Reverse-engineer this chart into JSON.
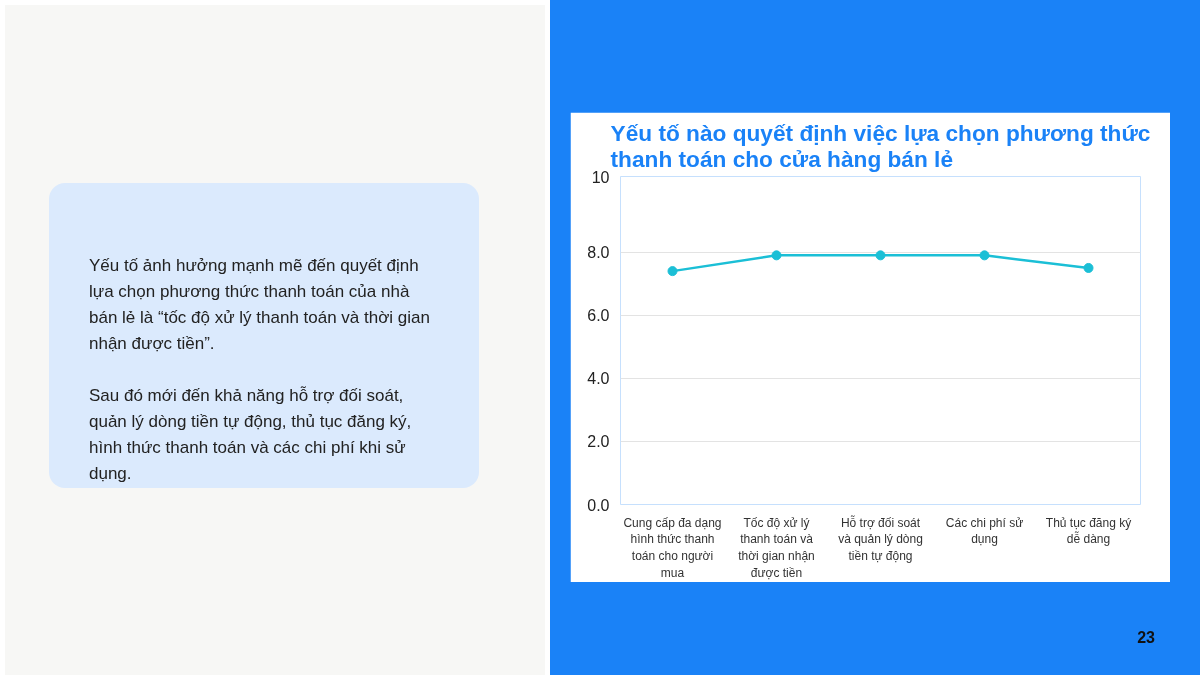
{
  "chart_data": {
    "type": "line",
    "title": "Yếu tố nào quyết định việc lựa chọn phương thức\nthanh toán cho cửa hàng bán lẻ",
    "categories": [
      "Cung cấp đa dạng hình thức thanh toán cho người mua",
      "Tốc độ xử lý thanh toán và thời gian nhận được tiền",
      "Hỗ trợ đối soát và quản lý dòng tiền tự động",
      "Các chi phí sử dụng",
      "Thủ tục đăng ký dễ dàng"
    ],
    "series": [
      {
        "color": "#1bbfd6",
        "values": [
          7.4,
          7.9,
          7.9,
          7.9,
          7.5
        ]
      }
    ],
    "ylim": [
      0,
      10.4
    ],
    "yticks": [
      {
        "value": 0,
        "label": "0.0"
      },
      {
        "value": 2,
        "label": "2.0"
      },
      {
        "value": 4,
        "label": "4.0"
      },
      {
        "value": 6,
        "label": "6.0"
      },
      {
        "value": 8,
        "label": "8.0"
      },
      {
        "value": 10.4,
        "label": "10"
      }
    ],
    "grid": "y",
    "marker": "circle",
    "line_style": "solid",
    "annotations": [
      "Yếu tố ảnh hưởng mạnh mẽ đến quyết định lựa chọn phương thức thanh toán của nhà bán lẻ là “tốc độ xử lý thanh toán và thời gian nhận được tiền”.",
      "Sau đó mới đến khả năng hỗ trợ đối soát, quản lý dòng tiền tự động, thủ tục đăng ký, hình thức thanh toán và các chi phí khi sử dụng.",
      "23"
    ]
  }
}
